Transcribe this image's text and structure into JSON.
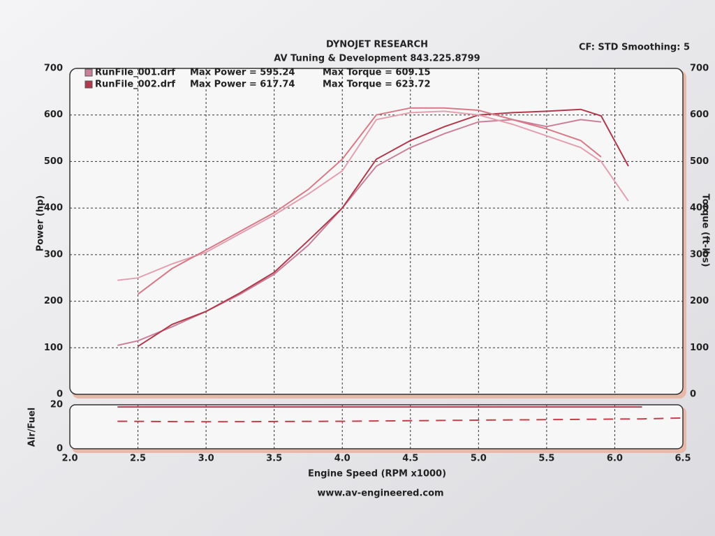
{
  "chart_data": [
    {
      "type": "line",
      "title": "DYNOJET RESEARCH",
      "subtitle": "AV Tuning & Development 843.225.8799",
      "settings_text": "CF: STD  Smoothing: 5",
      "y_label": "Power (hp)",
      "y2_label": "Torque (ft-lbs)",
      "legend": [
        {
          "run": "RunFile_001.drf",
          "max_power": "Max Power = 595.24",
          "max_torque": "Max Torque = 609.15"
        },
        {
          "run": "RunFile_002.drf",
          "max_power": "Max Power = 617.74",
          "max_torque": "Max Torque = 623.72"
        }
      ],
      "grid": true,
      "x": [
        2.35,
        2.5,
        2.75,
        3.0,
        3.25,
        3.5,
        3.75,
        4.0,
        4.25,
        4.5,
        4.75,
        5.0,
        5.25,
        5.5,
        5.75,
        5.9,
        6.1
      ],
      "xlim": [
        2.0,
        6.5
      ],
      "ylim": [
        0,
        700
      ],
      "yticks": [
        0,
        100,
        200,
        300,
        400,
        500,
        600,
        700
      ],
      "y2lim": [
        0,
        700
      ],
      "y2ticks": [
        0,
        100,
        200,
        300,
        400,
        500,
        600,
        700
      ],
      "series": [
        {
          "color": "#c9809a",
          "values": [
            105,
            115,
            145,
            178,
            215,
            258,
            320,
            400,
            490,
            530,
            560,
            585,
            590,
            575,
            590,
            585,
            null
          ]
        },
        {
          "color": "#b03a4c",
          "values": [
            null,
            103,
            150,
            178,
            218,
            262,
            330,
            400,
            505,
            545,
            575,
            600,
            605,
            608,
            612,
            598,
            490
          ]
        },
        {
          "color": "#e3a0b0",
          "axis": "y2",
          "values": [
            245,
            250,
            280,
            305,
            345,
            385,
            430,
            480,
            590,
            605,
            608,
            600,
            580,
            555,
            530,
            500,
            415
          ]
        },
        {
          "color": "#d77a88",
          "axis": "y2",
          "values": [
            null,
            215,
            270,
            310,
            350,
            390,
            440,
            505,
            600,
            615,
            615,
            610,
            590,
            570,
            545,
            510,
            null
          ]
        }
      ]
    },
    {
      "type": "line",
      "y_label": "Air/Fuel",
      "x_label": "Engine Speed (RPM x1000)",
      "footer": "www.av-engineered.com",
      "x": [
        2.35,
        3.0,
        4.0,
        5.0,
        6.0,
        6.2,
        6.5
      ],
      "xlim": [
        2.0,
        6.5
      ],
      "xticks": [
        {
          "value": 2.0,
          "label": "2.0"
        },
        2.5,
        {
          "value": 3.0,
          "label": "3.0"
        },
        3.5,
        {
          "value": 4.0,
          "label": "4.0"
        },
        4.5,
        {
          "value": 5.0,
          "label": "5.0"
        },
        5.5,
        {
          "value": 6.0,
          "label": "6.0"
        },
        6.5
      ],
      "ylim": [
        0,
        20
      ],
      "yticks": [
        0,
        20
      ],
      "series": [
        {
          "color": "#b03a4c",
          "values": [
            19,
            19,
            19,
            19,
            19,
            19,
            null
          ]
        },
        {
          "color": "#c0404c",
          "dashed": true,
          "values": [
            12.5,
            12.3,
            12.5,
            13,
            13.5,
            13.6,
            14
          ]
        }
      ]
    }
  ]
}
